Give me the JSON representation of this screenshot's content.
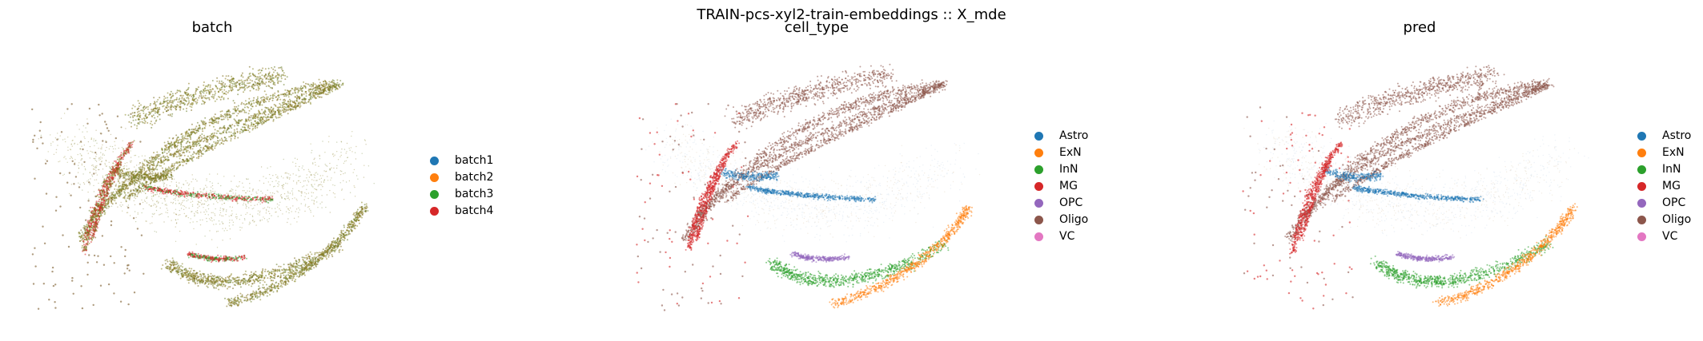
{
  "figure": {
    "suptitle": "TRAIN-pcs-xyl2-train-embeddings :: X_mde"
  },
  "chart_data": [
    {
      "type": "scatter",
      "title": "batch",
      "xlabel": "",
      "ylabel": "",
      "grid": false,
      "legend_position": "right",
      "categories": [
        "batch1",
        "batch2",
        "batch3",
        "batch4"
      ],
      "colors": [
        "#1f77b4",
        "#ff7f0e",
        "#2ca02c",
        "#d62728"
      ]
    },
    {
      "type": "scatter",
      "title": "cell_type",
      "xlabel": "",
      "ylabel": "",
      "grid": false,
      "legend_position": "right",
      "categories": [
        "Astro",
        "ExN",
        "InN",
        "MG",
        "OPC",
        "Oligo",
        "VC"
      ],
      "colors": [
        "#1f77b4",
        "#ff7f0e",
        "#2ca02c",
        "#d62728",
        "#9467bd",
        "#8c564b",
        "#e377c2"
      ]
    },
    {
      "type": "scatter",
      "title": "pred",
      "xlabel": "",
      "ylabel": "",
      "grid": false,
      "legend_position": "right",
      "categories": [
        "Astro",
        "ExN",
        "InN",
        "MG",
        "OPC",
        "Oligo",
        "VC"
      ],
      "colors": [
        "#1f77b4",
        "#ff7f0e",
        "#2ca02c",
        "#d62728",
        "#9467bd",
        "#8c564b",
        "#e377c2"
      ]
    }
  ]
}
